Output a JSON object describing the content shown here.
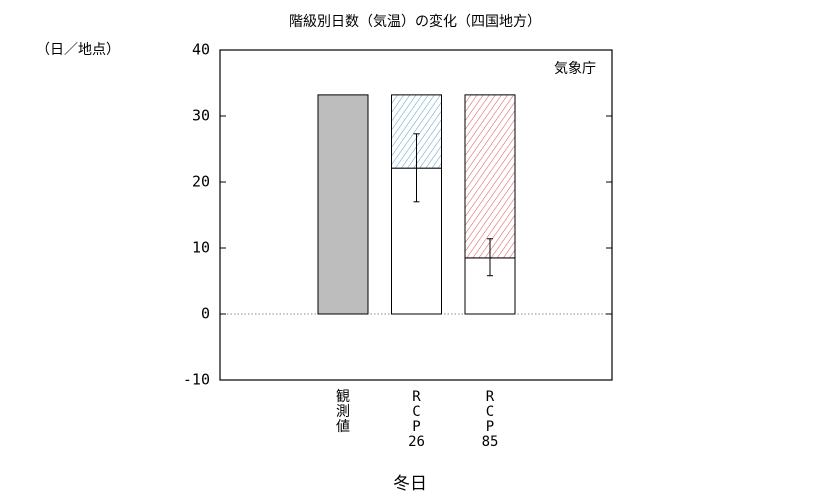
{
  "chart_data": {
    "type": "stacked-bar",
    "title": "階級別日数（気温）の変化（四国地方）",
    "y_label": "（日／地点）",
    "x_label": "冬日",
    "annotation": "気象庁",
    "categories": [
      [
        "観",
        "測",
        "値"
      ],
      [
        "R",
        "C",
        "P",
        "26"
      ],
      [
        "R",
        "C",
        "P",
        "85"
      ]
    ],
    "series": [
      {
        "values": [
          33.2,
          22.1,
          8.5
        ],
        "colors": [
          "#bdbdbd",
          "#ffffff",
          "#ffffff"
        ],
        "error_range": [
          null,
          [
            17.0,
            27.3
          ],
          [
            5.8,
            11.4
          ]
        ]
      },
      {
        "values": [
          null,
          11.1,
          24.7
        ],
        "colors": [
          null,
          "#5b9bc8",
          "#d9534f"
        ],
        "hatched": true
      }
    ],
    "ylim": [
      -10,
      40
    ],
    "yticks": [
      -10,
      0,
      10,
      20,
      30,
      40
    ]
  }
}
